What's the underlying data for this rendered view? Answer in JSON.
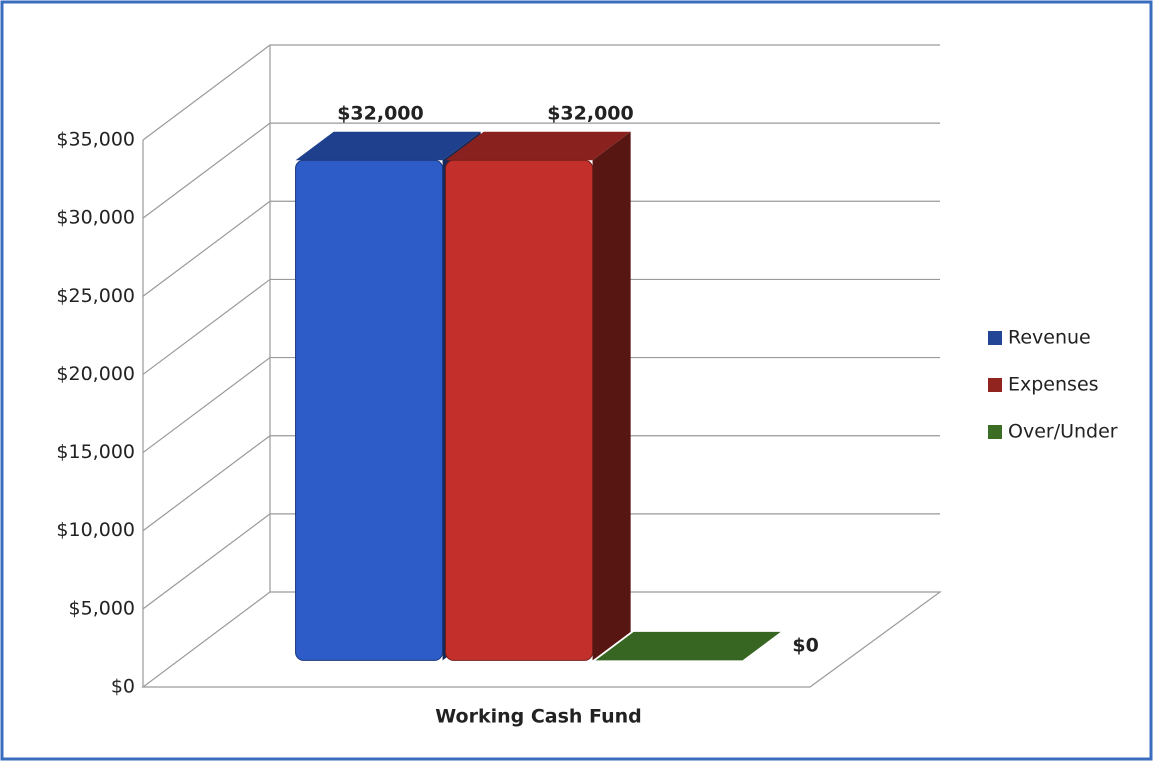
{
  "chart_data": {
    "type": "bar3d",
    "categories": [
      "Working Cash Fund"
    ],
    "series": [
      {
        "name": "Revenue",
        "color": "#2d5cc8",
        "values": [
          32000
        ],
        "value_labels": [
          "$32,000"
        ]
      },
      {
        "name": "Expenses",
        "color": "#c3302b",
        "values": [
          32000
        ],
        "value_labels": [
          "$32,000"
        ]
      },
      {
        "name": "Over/Under",
        "color": "#4f9230",
        "values": [
          0
        ],
        "value_labels": [
          "$0"
        ]
      }
    ],
    "ylim": [
      0,
      35000
    ],
    "yticks": [
      {
        "value": 0,
        "label": "$0"
      },
      {
        "value": 5000,
        "label": "$5,000"
      },
      {
        "value": 10000,
        "label": "$10,000"
      },
      {
        "value": 15000,
        "label": "$15,000"
      },
      {
        "value": 20000,
        "label": "$20,000"
      },
      {
        "value": 25000,
        "label": "$25,000"
      },
      {
        "value": 30000,
        "label": "$30,000"
      },
      {
        "value": 35000,
        "label": "$35,000"
      }
    ],
    "grid": true,
    "legend": "right"
  }
}
